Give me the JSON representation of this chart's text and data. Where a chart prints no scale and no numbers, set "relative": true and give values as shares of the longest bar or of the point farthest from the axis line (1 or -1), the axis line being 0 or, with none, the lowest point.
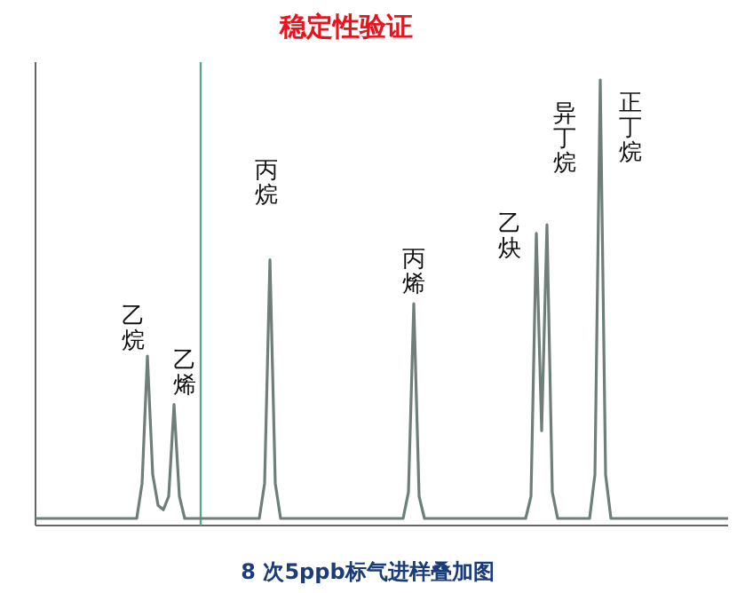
{
  "chart_data": {
    "type": "line",
    "relative": true,
    "title": "稳定性验证",
    "color": "#6e7f7a",
    "categories": [
      null,
      null,
      null,
      null,
      null,
      null,
      null,
      null,
      null,
      null,
      null,
      null,
      null,
      null,
      null,
      null,
      null,
      null,
      null,
      null,
      null,
      null,
      null,
      null,
      null,
      null,
      null,
      null,
      null,
      null,
      null,
      null,
      null,
      null,
      null,
      null,
      null,
      null,
      null,
      null,
      null,
      null,
      null,
      null,
      null,
      null,
      null,
      null,
      null,
      null,
      null,
      null,
      null,
      null,
      null,
      null,
      null,
      null,
      null,
      null,
      null,
      null,
      null,
      null,
      null,
      null,
      null,
      null,
      null,
      null,
      null,
      null,
      null,
      null,
      null,
      null,
      null,
      null,
      null,
      null,
      null,
      null,
      null,
      null,
      null,
      null,
      null,
      null,
      null,
      null,
      null,
      null,
      null,
      null,
      null,
      null,
      null,
      null,
      null,
      null,
      null,
      null,
      null,
      null,
      null,
      null,
      null,
      null,
      null,
      null,
      null,
      null,
      null,
      null,
      null,
      null,
      null,
      null,
      null,
      null,
      null,
      null,
      null,
      null,
      null,
      null,
      null,
      null,
      null,
      null,
      null
    ],
    "values": [
      0,
      0,
      0,
      0,
      0,
      0,
      0,
      0,
      0,
      0,
      0,
      0,
      0,
      0,
      0,
      0,
      0,
      0,
      0,
      0,
      0.08,
      0.37,
      0.1,
      0.03,
      0.02,
      0.05,
      0.26,
      0.05,
      0,
      0,
      0,
      0,
      0,
      0,
      0,
      0,
      0,
      0,
      0,
      0,
      0,
      0,
      0,
      0.08,
      0.59,
      0.08,
      0,
      0,
      0,
      0,
      0,
      0,
      0,
      0,
      0,
      0,
      0,
      0,
      0,
      0,
      0,
      0,
      0,
      0,
      0,
      0,
      0,
      0,
      0,
      0,
      0.06,
      0.49,
      0.05,
      0,
      0,
      0,
      0,
      0,
      0,
      0,
      0,
      0,
      0,
      0,
      0,
      0,
      0,
      0,
      0,
      0,
      0,
      0,
      0,
      0.05,
      0.65,
      0.2,
      0.67,
      0.06,
      0,
      0,
      0,
      0,
      0,
      0,
      0,
      0.1,
      1,
      0.1,
      0,
      0,
      0,
      0,
      0,
      0,
      0,
      0,
      0,
      0,
      0,
      0,
      0,
      0,
      0,
      0,
      0,
      0,
      0,
      0,
      0,
      0,
      0
    ],
    "annotations": [
      "乙烷",
      "乙烯",
      "丙烷",
      "丙烯",
      "乙炔",
      "异丁烷",
      "正丁烷",
      "8 次5ppb标气进样叠加图"
    ]
  }
}
